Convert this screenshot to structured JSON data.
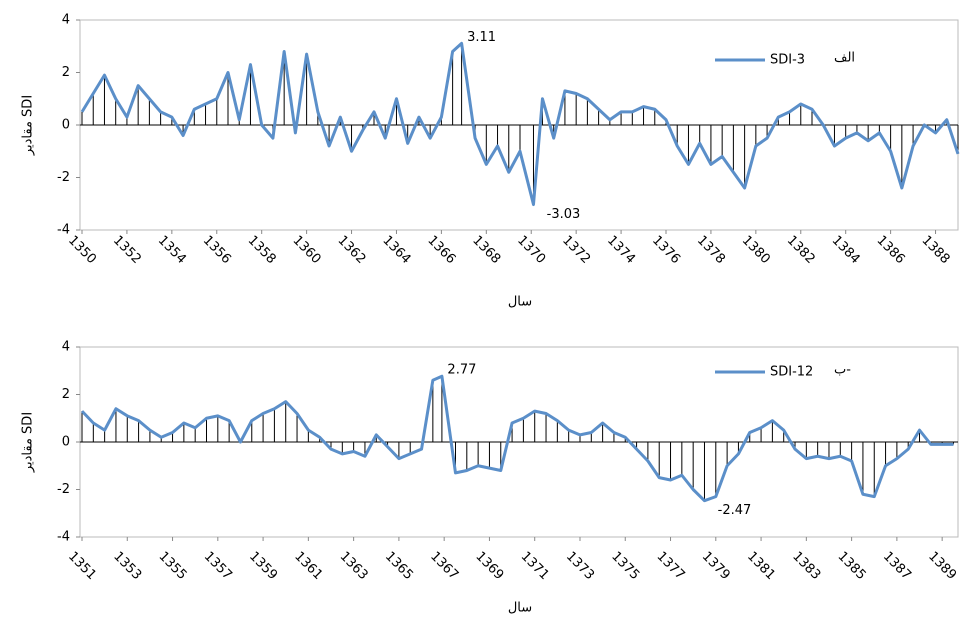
{
  "charts": [
    {
      "chart_data": {
        "type": "line",
        "stems": true,
        "panel_label": "الف",
        "x_title": "سال",
        "y_title": "مقادیر SDI",
        "xlim": [
          1350,
          1389
        ],
        "ylim": [
          -4,
          4
        ],
        "yticks": [
          -4,
          -2,
          0,
          2,
          4
        ],
        "xticks": [
          1350,
          1352,
          1354,
          1356,
          1358,
          1360,
          1362,
          1364,
          1366,
          1368,
          1370,
          1372,
          1374,
          1376,
          1378,
          1380,
          1382,
          1384,
          1386,
          1388
        ],
        "x": [
          1350,
          1350.5,
          1351,
          1351.5,
          1352,
          1352.5,
          1353,
          1353.5,
          1354,
          1354.5,
          1355,
          1355.5,
          1356,
          1356.5,
          1357,
          1357.5,
          1358,
          1358.5,
          1359,
          1359.5,
          1360,
          1360.5,
          1361,
          1361.5,
          1362,
          1362.5,
          1363,
          1363.5,
          1364,
          1364.5,
          1365,
          1365.5,
          1366,
          1366.5,
          1366.9,
          1367.5,
          1368,
          1368.5,
          1369,
          1369.5,
          1370.1,
          1370.5,
          1371,
          1371.5,
          1372,
          1372.5,
          1373,
          1373.5,
          1374,
          1374.5,
          1375,
          1375.5,
          1376,
          1376.5,
          1377,
          1377.5,
          1378,
          1378.5,
          1379,
          1379.5,
          1380,
          1380.5,
          1381,
          1381.5,
          1382,
          1382.5,
          1383,
          1383.5,
          1384,
          1384.5,
          1385,
          1385.5,
          1386,
          1386.5,
          1387,
          1387.5,
          1388,
          1388.5,
          1389
        ],
        "series": [
          {
            "name": "SDI-3",
            "color": "#5b8fc9",
            "values": [
              0.5,
              1.2,
              1.9,
              1.0,
              0.3,
              1.5,
              1.0,
              0.5,
              0.3,
              -0.4,
              0.6,
              0.8,
              1.0,
              2.0,
              0.2,
              2.3,
              0.0,
              -0.5,
              2.8,
              -0.3,
              2.7,
              0.5,
              -0.8,
              0.3,
              -1.0,
              -0.2,
              0.5,
              -0.5,
              1.0,
              -0.7,
              0.3,
              -0.5,
              0.3,
              2.8,
              3.11,
              -0.5,
              -1.5,
              -0.8,
              -1.8,
              -1.0,
              -3.03,
              1.0,
              -0.5,
              1.3,
              1.2,
              1.0,
              0.6,
              0.2,
              0.5,
              0.5,
              0.7,
              0.6,
              0.2,
              -0.8,
              -1.5,
              -0.7,
              -1.5,
              -1.2,
              -1.8,
              -2.4,
              -0.8,
              -0.5,
              0.3,
              0.5,
              0.8,
              0.6,
              0.0,
              -0.8,
              -0.5,
              -0.3,
              -0.6,
              -0.3,
              -1.0,
              -2.4,
              -0.8,
              0.0,
              -0.3,
              0.2,
              -1.1
            ],
            "value_labels": [
              null,
              null,
              null,
              null,
              null,
              null,
              null,
              null,
              null,
              null,
              null,
              null,
              null,
              null,
              null,
              null,
              null,
              null,
              null,
              null,
              null,
              null,
              null,
              null,
              null,
              null,
              null,
              null,
              null,
              null,
              null,
              null,
              null,
              null,
              "3.11",
              null,
              null,
              null,
              null,
              null,
              "-3.03",
              null,
              null,
              null,
              null,
              null,
              null,
              null,
              null,
              null,
              null,
              null,
              null,
              null,
              null,
              null,
              null,
              null,
              null,
              null,
              null,
              null,
              null,
              null,
              null,
              null,
              null,
              null,
              null,
              null,
              null,
              null,
              null,
              null,
              null,
              null,
              null,
              null,
              null
            ]
          }
        ]
      }
    },
    {
      "chart_data": {
        "type": "line",
        "stems": true,
        "panel_label": "ب-",
        "x_title": "سال",
        "y_title": "مقادیر SDI",
        "xlim": [
          1351,
          1389.7
        ],
        "ylim": [
          -4,
          4
        ],
        "yticks": [
          -4,
          -2,
          0,
          2,
          4
        ],
        "xticks": [
          1351,
          1353,
          1355,
          1357,
          1359,
          1361,
          1363,
          1365,
          1367,
          1369,
          1371,
          1373,
          1375,
          1377,
          1379,
          1381,
          1383,
          1385,
          1387,
          1389
        ],
        "x": [
          1351,
          1351.5,
          1352,
          1352.5,
          1353,
          1353.5,
          1354,
          1354.5,
          1355,
          1355.5,
          1356,
          1356.5,
          1357,
          1357.5,
          1358,
          1358.5,
          1359,
          1359.5,
          1360,
          1360.5,
          1361,
          1361.5,
          1362,
          1362.5,
          1363,
          1363.5,
          1364,
          1364.5,
          1365,
          1365.5,
          1366,
          1366.5,
          1366.9,
          1367.5,
          1368,
          1368.5,
          1369,
          1369.5,
          1370,
          1370.5,
          1371,
          1371.5,
          1372,
          1372.5,
          1373,
          1373.5,
          1374,
          1374.5,
          1375,
          1375.5,
          1376,
          1376.5,
          1377,
          1377.5,
          1378,
          1378.5,
          1379,
          1379.5,
          1380,
          1380.5,
          1381,
          1381.5,
          1382,
          1382.5,
          1383,
          1383.5,
          1384,
          1384.5,
          1385,
          1385.5,
          1386,
          1386.5,
          1387,
          1387.5,
          1388,
          1388.5,
          1389,
          1389.5
        ],
        "series": [
          {
            "name": "SDI-12",
            "color": "#5b8fc9",
            "values": [
              1.3,
              0.8,
              0.5,
              1.4,
              1.1,
              0.9,
              0.5,
              0.2,
              0.4,
              0.8,
              0.6,
              1.0,
              1.1,
              0.9,
              0.0,
              0.9,
              1.2,
              1.4,
              1.7,
              1.2,
              0.5,
              0.2,
              -0.3,
              -0.5,
              -0.4,
              -0.6,
              0.3,
              -0.2,
              -0.7,
              -0.5,
              -0.3,
              2.6,
              2.77,
              -1.3,
              -1.2,
              -1.0,
              -1.1,
              -1.2,
              0.8,
              1.0,
              1.3,
              1.2,
              0.9,
              0.5,
              0.3,
              0.4,
              0.8,
              0.4,
              0.2,
              -0.3,
              -0.8,
              -1.5,
              -1.6,
              -1.4,
              -2.0,
              -2.47,
              -2.3,
              -1.0,
              -0.5,
              0.4,
              0.6,
              0.9,
              0.5,
              -0.3,
              -0.7,
              -0.6,
              -0.7,
              -0.6,
              -0.8,
              -2.2,
              -2.3,
              -1.0,
              -0.7,
              -0.3,
              0.5,
              -0.1,
              -0.1,
              -0.1
            ],
            "value_labels": [
              null,
              null,
              null,
              null,
              null,
              null,
              null,
              null,
              null,
              null,
              null,
              null,
              null,
              null,
              null,
              null,
              null,
              null,
              null,
              null,
              null,
              null,
              null,
              null,
              null,
              null,
              null,
              null,
              null,
              null,
              null,
              null,
              "2.77",
              null,
              null,
              null,
              null,
              null,
              null,
              null,
              null,
              null,
              null,
              null,
              null,
              null,
              null,
              null,
              null,
              null,
              null,
              null,
              null,
              null,
              null,
              "-2.47",
              null,
              null,
              null,
              null,
              null,
              null,
              null,
              null,
              null,
              null,
              null,
              null,
              null,
              null,
              null,
              null,
              null,
              null,
              null,
              null,
              null,
              null
            ]
          }
        ]
      }
    }
  ]
}
